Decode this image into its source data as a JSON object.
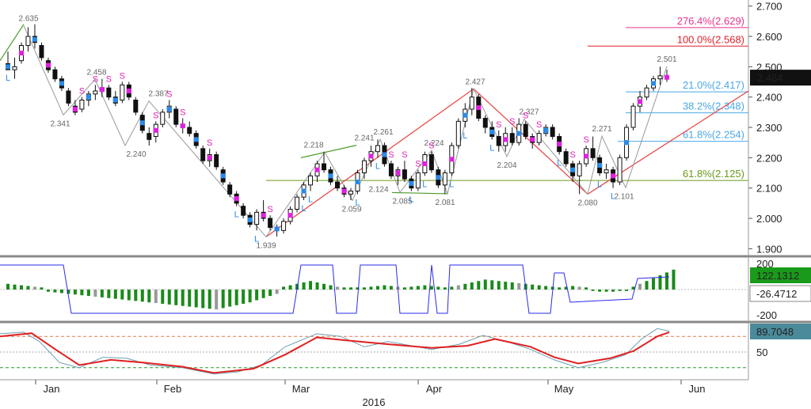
{
  "chart_data": {
    "type": "candlestick",
    "x_axis": {
      "months": [
        "Jan",
        "Feb",
        "Mar",
        "Apr",
        "May",
        "Jun"
      ],
      "year": "2016"
    },
    "price_axis": {
      "ticks": [
        "2.700",
        "2.600",
        "2.500",
        "2.400",
        "2.300",
        "2.200",
        "2.100",
        "2.000",
        "1.900"
      ],
      "ylim": [
        1.88,
        2.72
      ]
    },
    "last_price": "2.464",
    "candles": [
      {
        "o": 2.51,
        "h": 2.55,
        "l": 2.49,
        "c": 2.49
      },
      {
        "o": 2.49,
        "h": 2.53,
        "l": 2.46,
        "c": 2.5
      },
      {
        "o": 2.52,
        "h": 2.58,
        "l": 2.51,
        "c": 2.57
      },
      {
        "o": 2.57,
        "h": 2.63,
        "l": 2.55,
        "c": 2.6
      },
      {
        "o": 2.6,
        "h": 2.64,
        "l": 2.56,
        "c": 2.58
      },
      {
        "o": 2.57,
        "h": 2.58,
        "l": 2.52,
        "c": 2.53
      },
      {
        "o": 2.52,
        "h": 2.53,
        "l": 2.48,
        "c": 2.49
      },
      {
        "o": 2.49,
        "h": 2.5,
        "l": 2.45,
        "c": 2.46
      },
      {
        "o": 2.46,
        "h": 2.47,
        "l": 2.42,
        "c": 2.43
      },
      {
        "o": 2.42,
        "h": 2.43,
        "l": 2.37,
        "c": 2.38
      },
      {
        "o": 2.37,
        "h": 2.39,
        "l": 2.34,
        "c": 2.35
      },
      {
        "o": 2.36,
        "h": 2.4,
        "l": 2.35,
        "c": 2.39
      },
      {
        "o": 2.39,
        "h": 2.42,
        "l": 2.37,
        "c": 2.41
      },
      {
        "o": 2.41,
        "h": 2.44,
        "l": 2.39,
        "c": 2.42
      },
      {
        "o": 2.42,
        "h": 2.46,
        "l": 2.4,
        "c": 2.43
      },
      {
        "o": 2.43,
        "h": 2.44,
        "l": 2.39,
        "c": 2.4
      },
      {
        "o": 2.4,
        "h": 2.42,
        "l": 2.37,
        "c": 2.38
      },
      {
        "o": 2.39,
        "h": 2.45,
        "l": 2.38,
        "c": 2.44
      },
      {
        "o": 2.44,
        "h": 2.45,
        "l": 2.39,
        "c": 2.4
      },
      {
        "o": 2.39,
        "h": 2.4,
        "l": 2.34,
        "c": 2.35
      },
      {
        "o": 2.34,
        "h": 2.35,
        "l": 2.28,
        "c": 2.29
      },
      {
        "o": 2.28,
        "h": 2.3,
        "l": 2.24,
        "c": 2.26
      },
      {
        "o": 2.27,
        "h": 2.32,
        "l": 2.25,
        "c": 2.31
      },
      {
        "o": 2.31,
        "h": 2.36,
        "l": 2.3,
        "c": 2.35
      },
      {
        "o": 2.35,
        "h": 2.39,
        "l": 2.33,
        "c": 2.37
      },
      {
        "o": 2.36,
        "h": 2.37,
        "l": 2.3,
        "c": 2.31
      },
      {
        "o": 2.31,
        "h": 2.33,
        "l": 2.28,
        "c": 2.3
      },
      {
        "o": 2.3,
        "h": 2.32,
        "l": 2.27,
        "c": 2.28
      },
      {
        "o": 2.28,
        "h": 2.29,
        "l": 2.23,
        "c": 2.24
      },
      {
        "o": 2.23,
        "h": 2.24,
        "l": 2.18,
        "c": 2.19
      },
      {
        "o": 2.19,
        "h": 2.23,
        "l": 2.17,
        "c": 2.21
      },
      {
        "o": 2.21,
        "h": 2.22,
        "l": 2.16,
        "c": 2.17
      },
      {
        "o": 2.16,
        "h": 2.17,
        "l": 2.11,
        "c": 2.12
      },
      {
        "o": 2.11,
        "h": 2.12,
        "l": 2.07,
        "c": 2.08
      },
      {
        "o": 2.08,
        "h": 2.09,
        "l": 2.04,
        "c": 2.05
      },
      {
        "o": 2.04,
        "h": 2.05,
        "l": 2.0,
        "c": 2.01
      },
      {
        "o": 2.01,
        "h": 2.02,
        "l": 1.97,
        "c": 1.98
      },
      {
        "o": 1.98,
        "h": 2.03,
        "l": 1.96,
        "c": 2.02
      },
      {
        "o": 2.02,
        "h": 2.06,
        "l": 1.99,
        "c": 2.0
      },
      {
        "o": 2.0,
        "h": 2.01,
        "l": 1.96,
        "c": 1.97
      },
      {
        "o": 1.97,
        "h": 1.98,
        "l": 1.94,
        "c": 1.96
      },
      {
        "o": 1.96,
        "h": 2.0,
        "l": 1.95,
        "c": 1.99
      },
      {
        "o": 1.99,
        "h": 2.04,
        "l": 1.98,
        "c": 2.03
      },
      {
        "o": 2.03,
        "h": 2.08,
        "l": 2.02,
        "c": 2.07
      },
      {
        "o": 2.07,
        "h": 2.12,
        "l": 2.06,
        "c": 2.11
      },
      {
        "o": 2.11,
        "h": 2.15,
        "l": 2.09,
        "c": 2.14
      },
      {
        "o": 2.14,
        "h": 2.19,
        "l": 2.12,
        "c": 2.18
      },
      {
        "o": 2.18,
        "h": 2.22,
        "l": 2.15,
        "c": 2.16
      },
      {
        "o": 2.16,
        "h": 2.17,
        "l": 2.11,
        "c": 2.12
      },
      {
        "o": 2.12,
        "h": 2.14,
        "l": 2.09,
        "c": 2.1
      },
      {
        "o": 2.1,
        "h": 2.11,
        "l": 2.07,
        "c": 2.08
      },
      {
        "o": 2.08,
        "h": 2.1,
        "l": 2.06,
        "c": 2.09
      },
      {
        "o": 2.09,
        "h": 2.16,
        "l": 2.08,
        "c": 2.15
      },
      {
        "o": 2.15,
        "h": 2.2,
        "l": 2.13,
        "c": 2.19
      },
      {
        "o": 2.19,
        "h": 2.24,
        "l": 2.17,
        "c": 2.22
      },
      {
        "o": 2.22,
        "h": 2.26,
        "l": 2.2,
        "c": 2.24
      },
      {
        "o": 2.24,
        "h": 2.25,
        "l": 2.17,
        "c": 2.18
      },
      {
        "o": 2.18,
        "h": 2.19,
        "l": 2.13,
        "c": 2.14
      },
      {
        "o": 2.14,
        "h": 2.17,
        "l": 2.11,
        "c": 2.16
      },
      {
        "o": 2.16,
        "h": 2.19,
        "l": 2.12,
        "c": 2.13
      },
      {
        "o": 2.13,
        "h": 2.14,
        "l": 2.09,
        "c": 2.1
      },
      {
        "o": 2.1,
        "h": 2.16,
        "l": 2.09,
        "c": 2.15
      },
      {
        "o": 2.15,
        "h": 2.22,
        "l": 2.14,
        "c": 2.21
      },
      {
        "o": 2.21,
        "h": 2.22,
        "l": 2.15,
        "c": 2.16
      },
      {
        "o": 2.16,
        "h": 2.17,
        "l": 2.1,
        "c": 2.11
      },
      {
        "o": 2.11,
        "h": 2.16,
        "l": 2.08,
        "c": 2.15
      },
      {
        "o": 2.15,
        "h": 2.25,
        "l": 2.14,
        "c": 2.24
      },
      {
        "o": 2.24,
        "h": 2.33,
        "l": 2.23,
        "c": 2.32
      },
      {
        "o": 2.32,
        "h": 2.38,
        "l": 2.3,
        "c": 2.36
      },
      {
        "o": 2.36,
        "h": 2.43,
        "l": 2.34,
        "c": 2.4
      },
      {
        "o": 2.4,
        "h": 2.41,
        "l": 2.32,
        "c": 2.33
      },
      {
        "o": 2.33,
        "h": 2.34,
        "l": 2.28,
        "c": 2.3
      },
      {
        "o": 2.3,
        "h": 2.32,
        "l": 2.26,
        "c": 2.27
      },
      {
        "o": 2.27,
        "h": 2.29,
        "l": 2.22,
        "c": 2.24
      },
      {
        "o": 2.24,
        "h": 2.3,
        "l": 2.22,
        "c": 2.28
      },
      {
        "o": 2.28,
        "h": 2.3,
        "l": 2.24,
        "c": 2.25
      },
      {
        "o": 2.25,
        "h": 2.33,
        "l": 2.24,
        "c": 2.31
      },
      {
        "o": 2.31,
        "h": 2.32,
        "l": 2.26,
        "c": 2.27
      },
      {
        "o": 2.27,
        "h": 2.28,
        "l": 2.23,
        "c": 2.25
      },
      {
        "o": 2.25,
        "h": 2.29,
        "l": 2.24,
        "c": 2.28
      },
      {
        "o": 2.28,
        "h": 2.31,
        "l": 2.27,
        "c": 2.3
      },
      {
        "o": 2.3,
        "h": 2.31,
        "l": 2.26,
        "c": 2.27
      },
      {
        "o": 2.27,
        "h": 2.28,
        "l": 2.21,
        "c": 2.22
      },
      {
        "o": 2.22,
        "h": 2.23,
        "l": 2.17,
        "c": 2.18
      },
      {
        "o": 2.18,
        "h": 2.19,
        "l": 2.12,
        "c": 2.14
      },
      {
        "o": 2.14,
        "h": 2.19,
        "l": 2.08,
        "c": 2.18
      },
      {
        "o": 2.18,
        "h": 2.24,
        "l": 2.17,
        "c": 2.23
      },
      {
        "o": 2.23,
        "h": 2.27,
        "l": 2.19,
        "c": 2.2
      },
      {
        "o": 2.2,
        "h": 2.21,
        "l": 2.14,
        "c": 2.15
      },
      {
        "o": 2.15,
        "h": 2.18,
        "l": 2.13,
        "c": 2.16
      },
      {
        "o": 2.16,
        "h": 2.17,
        "l": 2.1,
        "c": 2.12
      },
      {
        "o": 2.12,
        "h": 2.21,
        "l": 2.11,
        "c": 2.2
      },
      {
        "o": 2.2,
        "h": 2.31,
        "l": 2.19,
        "c": 2.3
      },
      {
        "o": 2.3,
        "h": 2.38,
        "l": 2.29,
        "c": 2.37
      },
      {
        "o": 2.37,
        "h": 2.42,
        "l": 2.35,
        "c": 2.4
      },
      {
        "o": 2.4,
        "h": 2.44,
        "l": 2.39,
        "c": 2.43
      },
      {
        "o": 2.43,
        "h": 2.47,
        "l": 2.42,
        "c": 2.46
      },
      {
        "o": 2.46,
        "h": 2.5,
        "l": 2.44,
        "c": 2.47
      },
      {
        "o": 2.47,
        "h": 2.49,
        "l": 2.45,
        "c": 2.46
      }
    ],
    "swing_labels": [
      "2.635",
      "2.458",
      "2.341",
      "2.387",
      "2.240",
      "1.939",
      "2.218",
      "2.241",
      "2.261",
      "2.059",
      "2.124",
      "2.085",
      "2.224",
      "2.081",
      "2.427",
      "2.204",
      "2.327",
      "2.271",
      "2.080",
      "2.101",
      "2.501"
    ],
    "signal_marks": {
      "sell": "S",
      "buy": "L"
    },
    "fib_levels": [
      {
        "label": "276.4%(2.629)",
        "price": 2.629,
        "color": "#e8358c"
      },
      {
        "label": "100.0%(2.568)",
        "price": 2.568,
        "color": "#e0202a"
      },
      {
        "label": "21.0%(2.417)",
        "price": 2.417,
        "color": "#4aa8e8"
      },
      {
        "label": "38.2%(2.348)",
        "price": 2.348,
        "color": "#4aa8e8"
      },
      {
        "label": "61.8%(2.254)",
        "price": 2.254,
        "color": "#4aa8e8"
      },
      {
        "label": "61.8%(2.125)",
        "price": 2.125,
        "color": "#6a9a1a"
      }
    ],
    "oscillator": {
      "ticks": [
        "200",
        "-200"
      ],
      "readouts": [
        "122.1312",
        "-26.4712"
      ],
      "histogram": [
        8,
        7,
        6,
        5,
        4,
        3,
        -3,
        -4,
        -5,
        -6,
        -7,
        -8,
        -9,
        -10,
        -11,
        -12,
        -13,
        -14,
        -15,
        -16,
        -17,
        -18,
        -19,
        -20,
        -21,
        -22,
        -23,
        -24,
        -25,
        -26,
        -27,
        -28,
        -26,
        -24,
        -22,
        -20,
        -18,
        -15,
        -12,
        -9,
        -6,
        4,
        6,
        8,
        10,
        12,
        10,
        8,
        6,
        4,
        3,
        3,
        3,
        3,
        4,
        5,
        6,
        5,
        4,
        3,
        4,
        5,
        6,
        5,
        4,
        3,
        4,
        6,
        8,
        10,
        12,
        14,
        13,
        12,
        11,
        10,
        9,
        8,
        7,
        6,
        5,
        4,
        3,
        4,
        5,
        4,
        3,
        -2,
        -3,
        -3,
        -3,
        -2,
        -2,
        4,
        8,
        12,
        16,
        20,
        24,
        28
      ]
    },
    "stochastic": {
      "ticks": [
        "50"
      ],
      "readout": "89.7048",
      "levels": [
        80,
        50,
        20
      ]
    }
  }
}
